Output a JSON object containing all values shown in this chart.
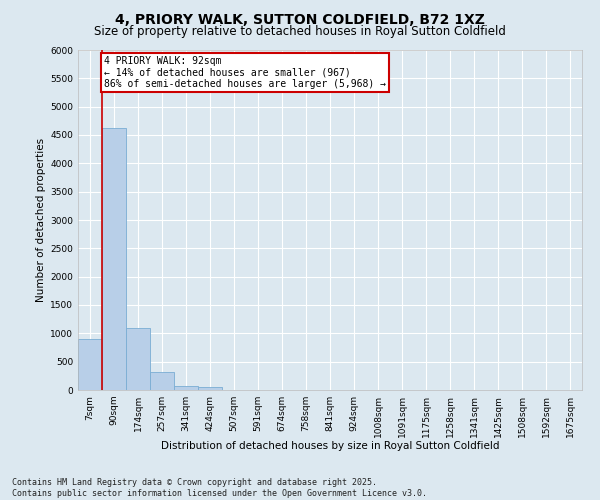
{
  "title": "4, PRIORY WALK, SUTTON COLDFIELD, B72 1XZ",
  "subtitle": "Size of property relative to detached houses in Royal Sutton Coldfield",
  "xlabel": "Distribution of detached houses by size in Royal Sutton Coldfield",
  "ylabel": "Number of detached properties",
  "categories": [
    "7sqm",
    "90sqm",
    "174sqm",
    "257sqm",
    "341sqm",
    "424sqm",
    "507sqm",
    "591sqm",
    "674sqm",
    "758sqm",
    "841sqm",
    "924sqm",
    "1008sqm",
    "1091sqm",
    "1175sqm",
    "1258sqm",
    "1341sqm",
    "1425sqm",
    "1508sqm",
    "1592sqm",
    "1675sqm"
  ],
  "values": [
    900,
    4620,
    1100,
    310,
    75,
    50,
    0,
    0,
    0,
    0,
    0,
    0,
    0,
    0,
    0,
    0,
    0,
    0,
    0,
    0,
    0
  ],
  "bar_color": "#b8cfe8",
  "bar_edge_color": "#7aadd4",
  "background_color": "#dce8f0",
  "grid_color": "#ffffff",
  "vline_color": "#cc0000",
  "annotation_text": "4 PRIORY WALK: 92sqm\n← 14% of detached houses are smaller (967)\n86% of semi-detached houses are larger (5,968) →",
  "annotation_box_facecolor": "#ffffff",
  "annotation_box_edgecolor": "#cc0000",
  "ylim": [
    0,
    6000
  ],
  "yticks": [
    0,
    500,
    1000,
    1500,
    2000,
    2500,
    3000,
    3500,
    4000,
    4500,
    5000,
    5500,
    6000
  ],
  "footer": "Contains HM Land Registry data © Crown copyright and database right 2025.\nContains public sector information licensed under the Open Government Licence v3.0.",
  "title_fontsize": 10,
  "subtitle_fontsize": 8.5,
  "xlabel_fontsize": 7.5,
  "ylabel_fontsize": 7.5,
  "tick_fontsize": 6.5,
  "annotation_fontsize": 7,
  "footer_fontsize": 6
}
